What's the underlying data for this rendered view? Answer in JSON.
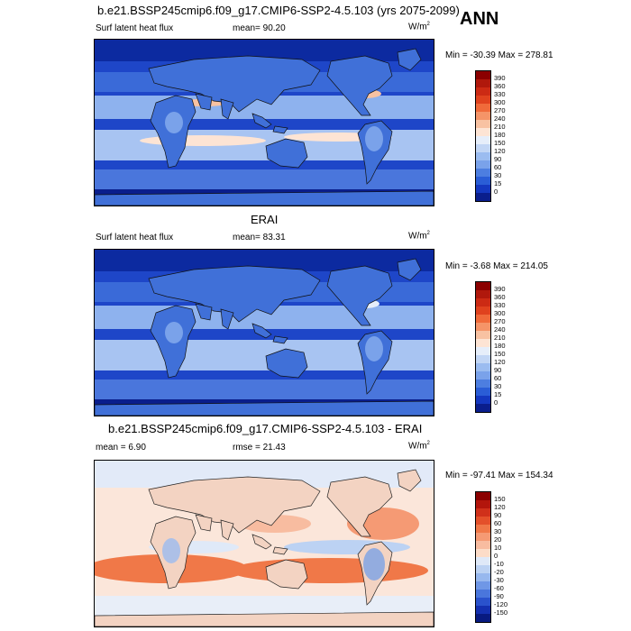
{
  "header": {
    "title": "b.e21.BSSP245cmip6.f09_g17.CMIP6-SSP2-4.5.103 (yrs 2075-2099)",
    "season": "ANN"
  },
  "panels": [
    {
      "id": "model",
      "section_title": "",
      "left_label": "Surf latent heat flux",
      "center_label": "mean=  90.20",
      "units": "W/m",
      "units_sup": "2",
      "minmax": "Min = -30.39 Max = 278.81",
      "colorbar": {
        "levels": [
          "390",
          "360",
          "330",
          "300",
          "270",
          "240",
          "210",
          "180",
          "150",
          "120",
          "90",
          "60",
          "30",
          "15",
          "0"
        ],
        "colors": [
          "#8b0000",
          "#b0180c",
          "#cc2a14",
          "#e0421e",
          "#f06a3a",
          "#f59468",
          "#f8c2a2",
          "#fde4d4",
          "#e6eefa",
          "#c2d6f5",
          "#9bbcf0",
          "#7aa2ea",
          "#4d7ee0",
          "#2a5dd6",
          "#1438c0",
          "#0a1e8c"
        ]
      }
    },
    {
      "id": "obs",
      "section_title": "ERAI",
      "left_label": "Surf latent heat flux",
      "center_label": "mean=  83.31",
      "units": "W/m",
      "units_sup": "2",
      "minmax": "Min =  -3.68 Max = 214.05",
      "colorbar": {
        "levels": [
          "390",
          "360",
          "330",
          "300",
          "270",
          "240",
          "210",
          "180",
          "150",
          "120",
          "90",
          "60",
          "30",
          "15",
          "0"
        ],
        "colors": [
          "#8b0000",
          "#b0180c",
          "#cc2a14",
          "#e0421e",
          "#f06a3a",
          "#f59468",
          "#f8c2a2",
          "#fde4d4",
          "#e6eefa",
          "#c2d6f5",
          "#9bbcf0",
          "#7aa2ea",
          "#4d7ee0",
          "#2a5dd6",
          "#1438c0",
          "#0a1e8c"
        ]
      }
    },
    {
      "id": "diff",
      "section_title": "b.e21.BSSP245cmip6.f09_g17.CMIP6-SSP2-4.5.103 - ERAI",
      "left_label": "mean =   6.90",
      "center_label": "rmse =  21.43",
      "units": "W/m",
      "units_sup": "2",
      "minmax": "Min = -97.41 Max = 154.34",
      "colorbar": {
        "levels": [
          "150",
          "120",
          "90",
          "60",
          "30",
          "20",
          "10",
          "0",
          "-10",
          "-20",
          "-30",
          "-60",
          "-90",
          "-120",
          "-150"
        ],
        "colors": [
          "#8b0000",
          "#b3150c",
          "#d0301a",
          "#e4502a",
          "#f07848",
          "#f59a74",
          "#f8bca0",
          "#fcdcc8",
          "#dfe9f8",
          "#bcd2f3",
          "#97b8ee",
          "#6f97e6",
          "#4a76dc",
          "#2a52cc",
          "#1430b0",
          "#081a80"
        ]
      }
    }
  ]
}
